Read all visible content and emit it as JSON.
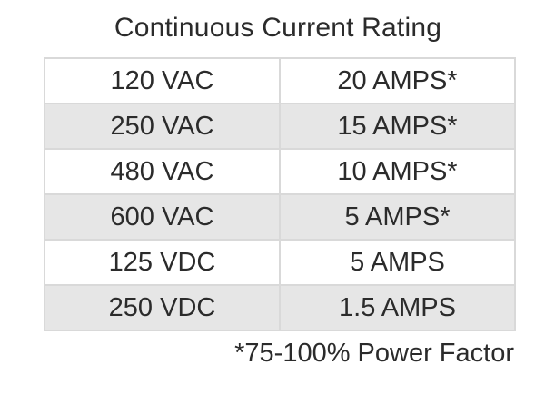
{
  "title": "Continuous Current Rating",
  "table": {
    "rows": [
      {
        "voltage": "120 VAC",
        "current": "20 AMPS*"
      },
      {
        "voltage": "250 VAC",
        "current": "15 AMPS*"
      },
      {
        "voltage": "480 VAC",
        "current": "10 AMPS*"
      },
      {
        "voltage": "600 VAC",
        "current": "5 AMPS*"
      },
      {
        "voltage": "125 VDC",
        "current": "5 AMPS"
      },
      {
        "voltage": "250 VDC",
        "current": "1.5 AMPS"
      }
    ]
  },
  "footnote": "*75-100% Power Factor",
  "colors": {
    "text": "#2b2b2b",
    "row_alt": "#e6e6e6",
    "border": "#d9d9d9",
    "background": "#ffffff"
  }
}
